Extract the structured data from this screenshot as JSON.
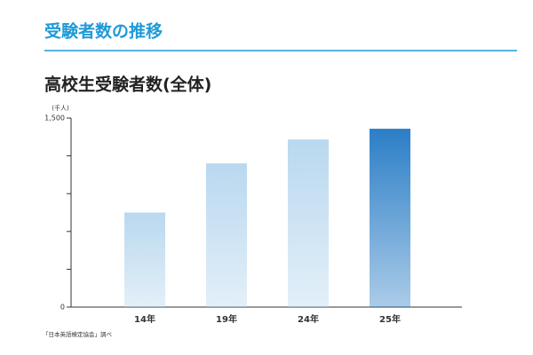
{
  "header": {
    "title": "受験者数の推移"
  },
  "chart_data": {
    "type": "bar",
    "title": "高校生受験者数(全体)",
    "y_unit": "(千人)",
    "categories": [
      "14年",
      "19年",
      "24年",
      "25年"
    ],
    "values": [
      750,
      1140,
      1330,
      1415
    ],
    "colors": [
      "#b9d8ef",
      "#b9d8ef",
      "#b9d8ef",
      "#2b7ec6"
    ],
    "ylim": [
      0,
      1500
    ],
    "yticks": [
      0,
      {
        "value": 1500,
        "label": "1,500"
      }
    ],
    "minor_yticks": [
      300,
      600,
      900,
      1200
    ],
    "source": "「日本英語検定協会」調べ"
  }
}
